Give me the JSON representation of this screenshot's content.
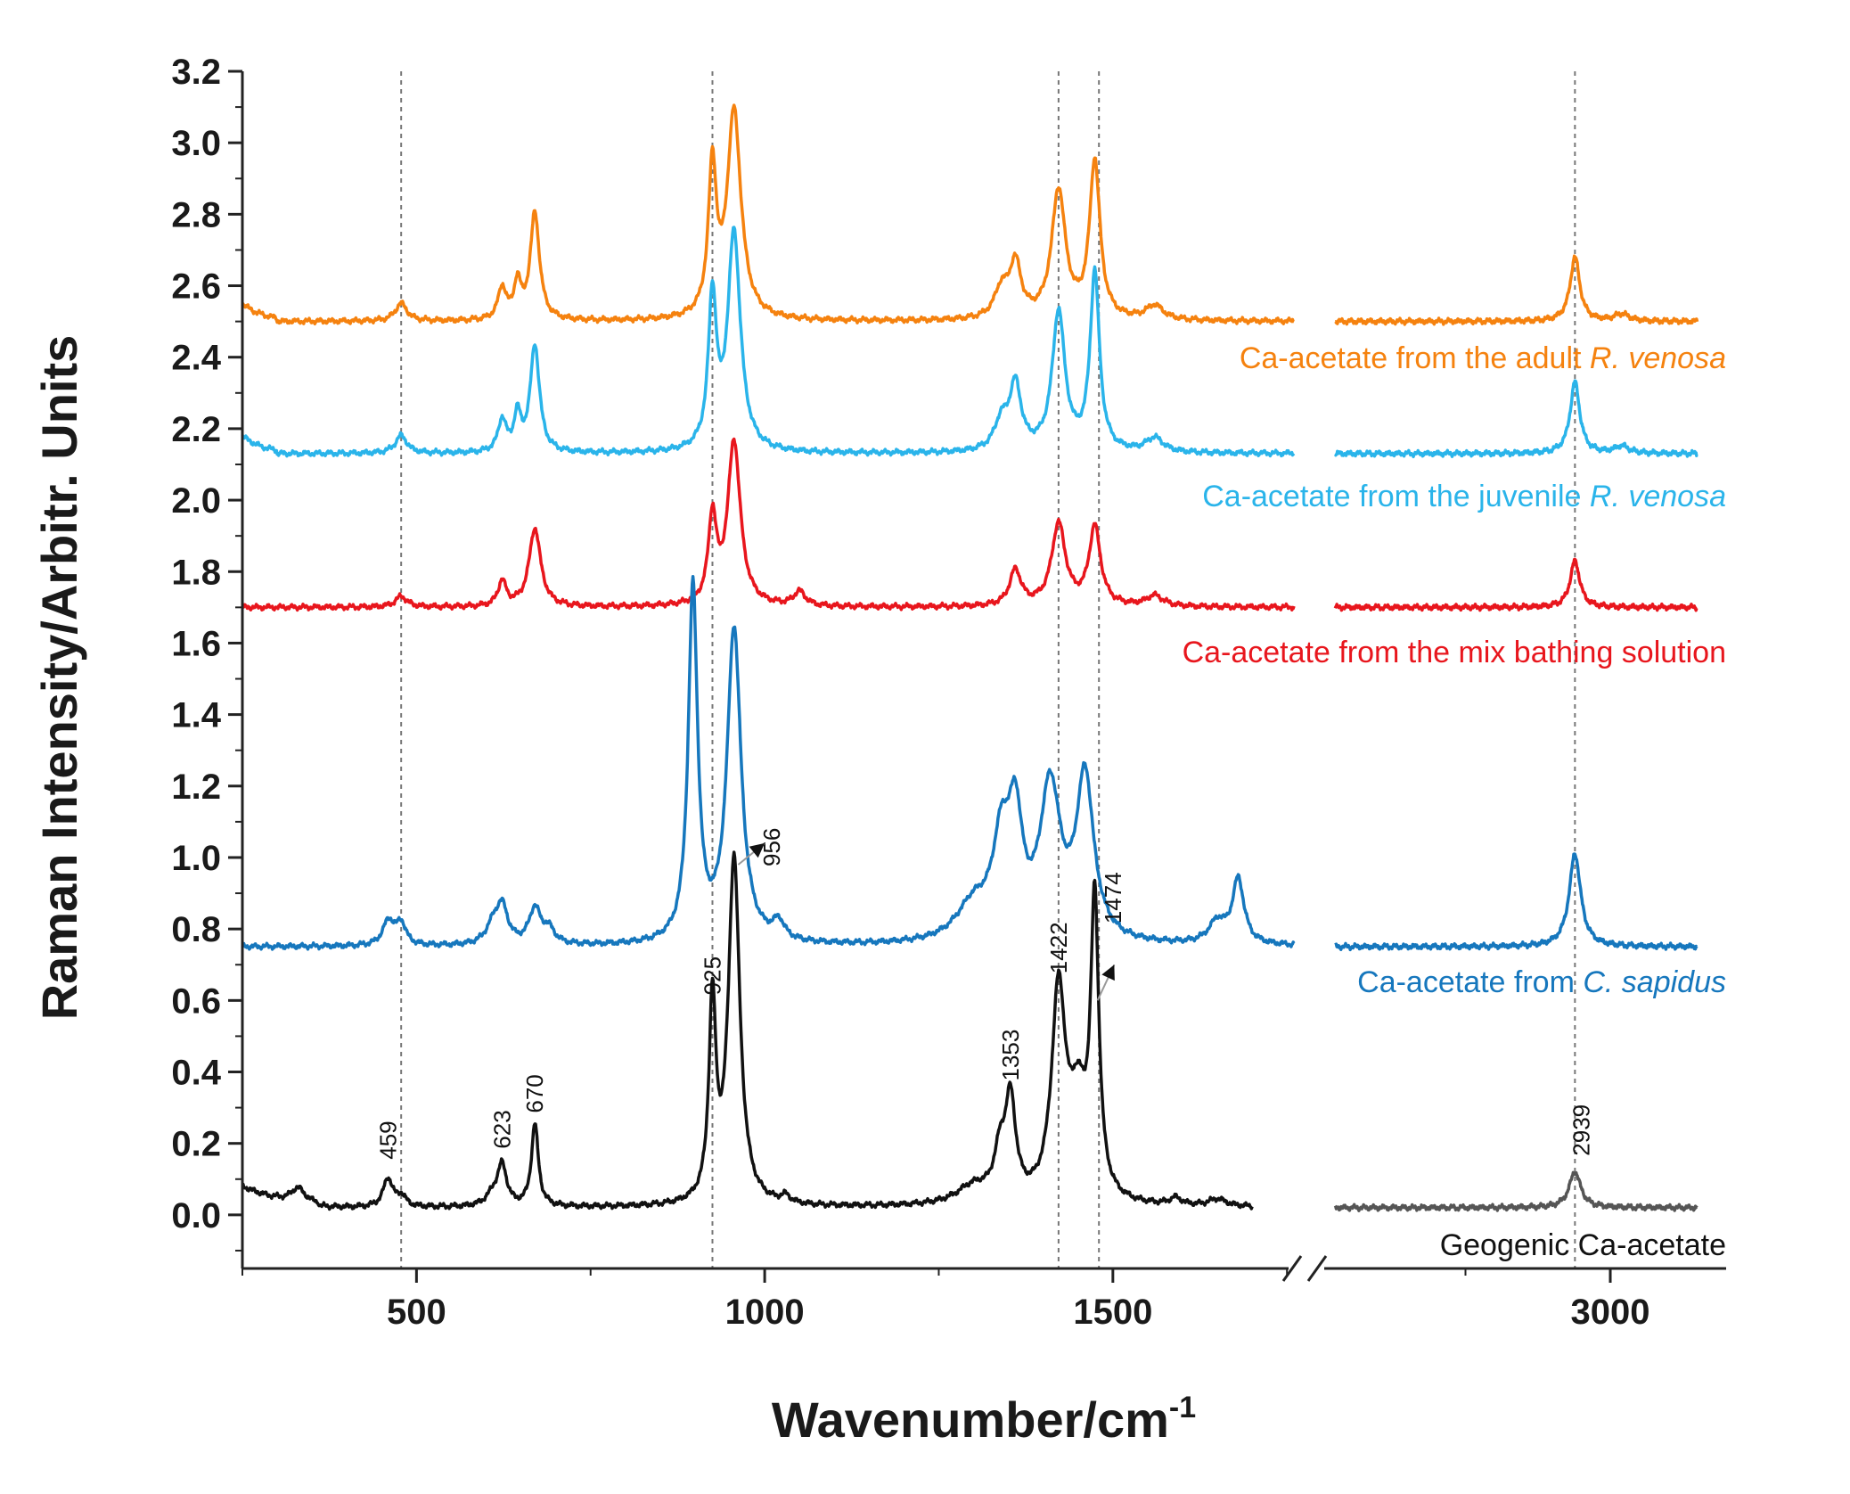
{
  "chart_data": {
    "type": "line",
    "title": "",
    "xlabel": "Wavenumber/cm",
    "xlabel_sup": "-1",
    "ylabel": "Raman Intensity/Arbitr. Units",
    "ylim": [
      -0.15,
      3.2
    ],
    "yticks": [
      "0.0",
      "0.2",
      "0.4",
      "0.6",
      "0.8",
      "1.0",
      "1.2",
      "1.4",
      "1.6",
      "1.8",
      "2.0",
      "2.2",
      "2.4",
      "2.6",
      "2.8",
      "3.0",
      "3.2"
    ],
    "x_segments": [
      {
        "range": [
          250,
          1760
        ],
        "ticks": [
          "500",
          "1000",
          "1500"
        ]
      },
      {
        "range": [
          2500,
          3200
        ],
        "ticks": [
          "3000"
        ]
      }
    ],
    "axis_break": true,
    "reference_lines": [
      478,
      925,
      1422,
      1480,
      2939
    ],
    "series": [
      {
        "name": "Ca-acetate from the adult R. venosa",
        "label_prefix": "Ca-acetate from the adult ",
        "label_species": "R. venosa",
        "color": "#f5820f",
        "baseline": 2.5,
        "peaks": [
          [
            478,
            0.05,
            10
          ],
          [
            623,
            0.09,
            7
          ],
          [
            645,
            0.1,
            6
          ],
          [
            670,
            0.3,
            8
          ],
          [
            925,
            0.41,
            7
          ],
          [
            956,
            0.58,
            12
          ],
          [
            1340,
            0.08,
            12
          ],
          [
            1360,
            0.15,
            10
          ],
          [
            1422,
            0.36,
            12
          ],
          [
            1474,
            0.44,
            9
          ],
          [
            1560,
            0.04,
            15
          ],
          [
            2939,
            0.18,
            10
          ],
          [
            3020,
            0.02,
            15
          ]
        ]
      },
      {
        "name": "Ca-acetate from the juvenile R. venosa",
        "label_prefix": "Ca-acetate from the juvenile ",
        "label_species": "R. venosa",
        "color": "#2ab4ea",
        "baseline": 2.13,
        "peaks": [
          [
            478,
            0.05,
            10
          ],
          [
            623,
            0.09,
            7
          ],
          [
            645,
            0.1,
            6
          ],
          [
            670,
            0.3,
            8
          ],
          [
            925,
            0.42,
            7
          ],
          [
            956,
            0.61,
            11
          ],
          [
            1340,
            0.08,
            12
          ],
          [
            1360,
            0.18,
            10
          ],
          [
            1422,
            0.39,
            11
          ],
          [
            1474,
            0.5,
            8
          ],
          [
            1560,
            0.04,
            15
          ],
          [
            2939,
            0.2,
            10
          ],
          [
            3020,
            0.02,
            15
          ]
        ]
      },
      {
        "name": "Ca-acetate from the mix bathing solution",
        "label_prefix": "Ca-acetate from the mix bathing solution",
        "label_species": "",
        "color": "#e8161d",
        "baseline": 1.7,
        "peaks": [
          [
            478,
            0.03,
            10
          ],
          [
            623,
            0.07,
            7
          ],
          [
            670,
            0.22,
            10
          ],
          [
            925,
            0.24,
            7
          ],
          [
            956,
            0.46,
            11
          ],
          [
            1050,
            0.04,
            10
          ],
          [
            1360,
            0.1,
            10
          ],
          [
            1422,
            0.23,
            12
          ],
          [
            1474,
            0.22,
            10
          ],
          [
            1560,
            0.03,
            15
          ],
          [
            2939,
            0.13,
            10
          ]
        ]
      },
      {
        "name": "Ca-acetate from C. sapidus",
        "label_prefix": "Ca-acetate from ",
        "label_species": "C. sapidus",
        "color": "#1677bd",
        "baseline": 0.75,
        "peaks": [
          [
            460,
            0.07,
            10
          ],
          [
            478,
            0.06,
            8
          ],
          [
            610,
            0.05,
            12
          ],
          [
            623,
            0.1,
            10
          ],
          [
            670,
            0.1,
            10
          ],
          [
            690,
            0.04,
            10
          ],
          [
            897,
            0.99,
            8
          ],
          [
            956,
            0.88,
            12
          ],
          [
            1020,
            0.05,
            10
          ],
          [
            1300,
            0.1,
            30
          ],
          [
            1340,
            0.25,
            15
          ],
          [
            1360,
            0.3,
            12
          ],
          [
            1410,
            0.42,
            18
          ],
          [
            1460,
            0.45,
            15
          ],
          [
            1650,
            0.06,
            15
          ],
          [
            1680,
            0.18,
            10
          ],
          [
            2939,
            0.26,
            12
          ]
        ]
      },
      {
        "name": "Geogenic Ca-acetate",
        "label_prefix": "Geogenic Ca-acetate",
        "label_species": "",
        "color": "#111111",
        "color_right": "#555555",
        "baseline": 0.02,
        "peaks": [
          [
            330,
            0.04,
            12
          ],
          [
            459,
            0.08,
            8
          ],
          [
            478,
            0.03,
            8
          ],
          [
            610,
            0.03,
            12
          ],
          [
            623,
            0.11,
            8
          ],
          [
            670,
            0.23,
            6
          ],
          [
            925,
            0.55,
            6
          ],
          [
            956,
            0.97,
            10
          ],
          [
            1030,
            0.02,
            8
          ],
          [
            1300,
            0.05,
            30
          ],
          [
            1338,
            0.12,
            10
          ],
          [
            1353,
            0.27,
            9
          ],
          [
            1422,
            0.58,
            12
          ],
          [
            1450,
            0.25,
            15
          ],
          [
            1474,
            0.81,
            7
          ],
          [
            1590,
            0.02,
            10
          ],
          [
            1650,
            0.02,
            15
          ],
          [
            2939,
            0.1,
            12
          ]
        ]
      }
    ],
    "peak_labels": [
      "459",
      "623",
      "670",
      "925",
      "956",
      "1353",
      "1422",
      "1474",
      "2939"
    ]
  }
}
